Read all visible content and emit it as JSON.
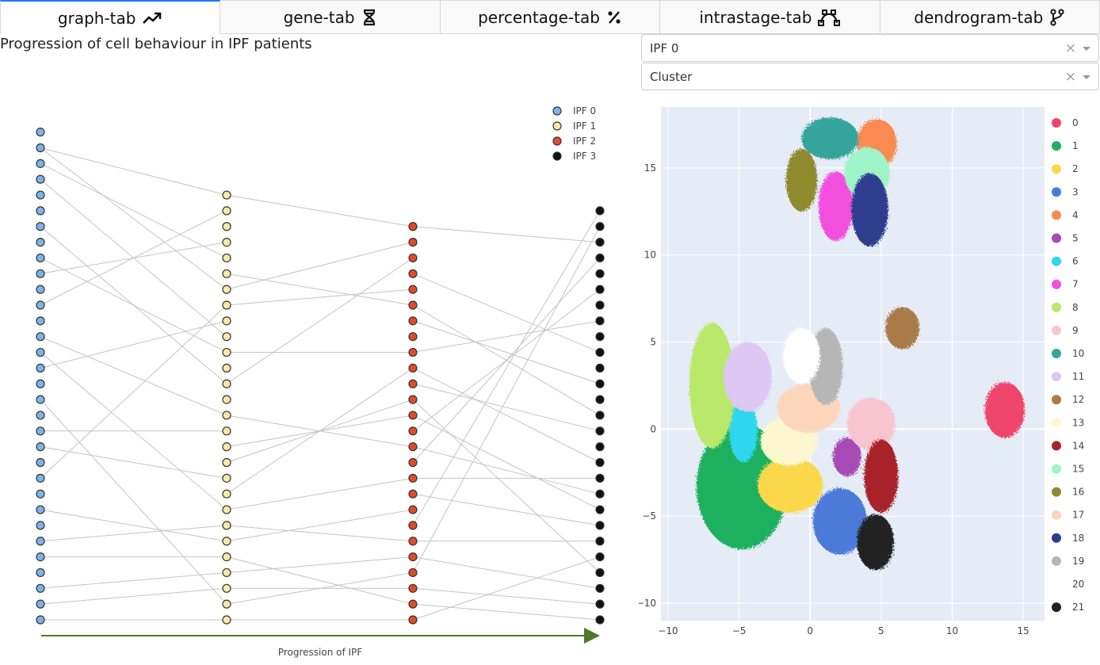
{
  "tabs": [
    {
      "label": "graph-tab",
      "icon": "trend-up-icon",
      "active": true
    },
    {
      "label": "gene-tab",
      "icon": "dna-icon",
      "active": false
    },
    {
      "label": "percentage-tab",
      "icon": "percent-icon",
      "active": false
    },
    {
      "label": "intrastage-tab",
      "icon": "bezier-icon",
      "active": false
    },
    {
      "label": "dendrogram-tab",
      "icon": "branch-icon",
      "active": false
    }
  ],
  "page_title": "Progression of cell behaviour in IPF patients",
  "selects": {
    "patient": {
      "value": "IPF 0",
      "clear": "×"
    },
    "color_by": {
      "value": "Cluster",
      "clear": "×"
    }
  },
  "graph": {
    "xlabel": "Progression of IPF",
    "legend": [
      {
        "name": "IPF 0",
        "color": "#7fb3e6"
      },
      {
        "name": "IPF 1",
        "color": "#f6eba6"
      },
      {
        "name": "IPF 2",
        "color": "#e34a2a"
      },
      {
        "name": "IPF 3",
        "color": "#111111"
      }
    ],
    "columns": [
      {
        "name": "IPF 0",
        "count": 32
      },
      {
        "name": "IPF 1",
        "count": 28
      },
      {
        "name": "IPF 2",
        "count": 26
      },
      {
        "name": "IPF 3",
        "count": 27
      }
    ],
    "edges": [
      [
        0,
        1,
        1,
        0
      ],
      [
        0,
        1,
        1,
        6
      ],
      [
        0,
        3,
        1,
        9
      ],
      [
        0,
        6,
        1,
        12
      ],
      [
        0,
        9,
        1,
        3
      ],
      [
        0,
        11,
        1,
        1
      ],
      [
        0,
        13,
        1,
        14
      ],
      [
        0,
        14,
        1,
        20
      ],
      [
        0,
        15,
        1,
        8
      ],
      [
        0,
        17,
        1,
        26
      ],
      [
        0,
        19,
        1,
        15
      ],
      [
        0,
        20,
        1,
        18
      ],
      [
        0,
        22,
        1,
        7
      ],
      [
        0,
        24,
        1,
        22
      ],
      [
        0,
        26,
        1,
        21
      ],
      [
        0,
        27,
        1,
        23
      ],
      [
        0,
        29,
        1,
        24
      ],
      [
        0,
        30,
        1,
        25
      ],
      [
        0,
        31,
        1,
        27
      ],
      [
        0,
        8,
        1,
        10
      ],
      [
        0,
        2,
        1,
        4
      ],
      [
        1,
        0,
        2,
        0
      ],
      [
        1,
        5,
        2,
        5
      ],
      [
        1,
        7,
        2,
        4
      ],
      [
        1,
        10,
        2,
        8
      ],
      [
        1,
        12,
        2,
        2
      ],
      [
        1,
        14,
        2,
        14
      ],
      [
        1,
        16,
        2,
        12
      ],
      [
        1,
        17,
        2,
        11
      ],
      [
        1,
        20,
        2,
        16
      ],
      [
        1,
        21,
        2,
        20
      ],
      [
        1,
        22,
        2,
        18
      ],
      [
        1,
        23,
        2,
        24
      ],
      [
        1,
        24,
        2,
        21
      ],
      [
        1,
        25,
        2,
        23
      ],
      [
        1,
        26,
        2,
        22
      ],
      [
        1,
        27,
        2,
        25
      ],
      [
        1,
        6,
        2,
        1
      ],
      [
        1,
        19,
        2,
        9
      ],
      [
        2,
        0,
        3,
        2
      ],
      [
        2,
        3,
        3,
        9
      ],
      [
        2,
        5,
        3,
        13
      ],
      [
        2,
        6,
        3,
        11
      ],
      [
        2,
        9,
        3,
        16
      ],
      [
        2,
        10,
        3,
        14
      ],
      [
        2,
        12,
        3,
        19
      ],
      [
        2,
        13,
        3,
        5
      ],
      [
        2,
        14,
        3,
        18
      ],
      [
        2,
        15,
        3,
        3
      ],
      [
        2,
        17,
        3,
        20
      ],
      [
        2,
        19,
        3,
        0
      ],
      [
        2,
        20,
        3,
        21
      ],
      [
        2,
        21,
        3,
        24
      ],
      [
        2,
        22,
        3,
        1
      ],
      [
        2,
        23,
        3,
        25
      ],
      [
        2,
        24,
        3,
        26
      ],
      [
        2,
        25,
        3,
        22
      ],
      [
        2,
        8,
        3,
        7
      ],
      [
        2,
        11,
        3,
        23
      ],
      [
        2,
        16,
        3,
        17
      ]
    ]
  },
  "umap": {
    "x_ticks": [
      "−10",
      "−5",
      "0",
      "5",
      "10",
      "15"
    ],
    "y_ticks": [
      "15",
      "10",
      "5",
      "0",
      "−5",
      "−10"
    ],
    "legend": [
      {
        "label": "0",
        "color": "#f0456b"
      },
      {
        "label": "1",
        "color": "#1fb05e"
      },
      {
        "label": "2",
        "color": "#fbd84a"
      },
      {
        "label": "3",
        "color": "#4c7ad8"
      },
      {
        "label": "4",
        "color": "#fa8a4f"
      },
      {
        "label": "5",
        "color": "#a64bb5"
      },
      {
        "label": "6",
        "color": "#2fd7ee"
      },
      {
        "label": "7",
        "color": "#f24fdf"
      },
      {
        "label": "8",
        "color": "#b9e86a"
      },
      {
        "label": "9",
        "color": "#f8c4d0"
      },
      {
        "label": "10",
        "color": "#34a59b"
      },
      {
        "label": "11",
        "color": "#dcc8f2"
      },
      {
        "label": "12",
        "color": "#ab7a48"
      },
      {
        "label": "13",
        "color": "#fdf7cf"
      },
      {
        "label": "14",
        "color": "#a8242b"
      },
      {
        "label": "15",
        "color": "#9ff4c7"
      },
      {
        "label": "16",
        "color": "#8f8a2e"
      },
      {
        "label": "17",
        "color": "#fdd5bb"
      },
      {
        "label": "18",
        "color": "#2d3d8e"
      },
      {
        "label": "19",
        "color": "#b6b6b6"
      },
      {
        "label": "20",
        "color": "#ffffff"
      },
      {
        "label": "21",
        "color": "#222222"
      }
    ],
    "chart_data": {
      "type": "scatter",
      "xlim": [
        -10.5,
        16.5
      ],
      "ylim": [
        -11,
        18.5
      ],
      "grid": true,
      "legend_position": "right",
      "clusters": [
        {
          "label": "0",
          "x": 13.7,
          "y": 1.1,
          "rx": 1.4,
          "ry": 1.6
        },
        {
          "label": "1",
          "x": -4.8,
          "y": -3.3,
          "rx": 3.2,
          "ry": 3.6
        },
        {
          "label": "2",
          "x": -1.4,
          "y": -3.2,
          "rx": 2.3,
          "ry": 1.6
        },
        {
          "label": "3",
          "x": 2.1,
          "y": -5.3,
          "rx": 1.9,
          "ry": 1.9
        },
        {
          "label": "4",
          "x": 4.7,
          "y": 16.4,
          "rx": 1.4,
          "ry": 1.4
        },
        {
          "label": "5",
          "x": 2.6,
          "y": -1.6,
          "rx": 1.0,
          "ry": 1.1
        },
        {
          "label": "6",
          "x": -4.7,
          "y": -0.1,
          "rx": 1.0,
          "ry": 1.8
        },
        {
          "label": "7",
          "x": 1.8,
          "y": 12.8,
          "rx": 1.2,
          "ry": 2.0
        },
        {
          "label": "8",
          "x": -6.9,
          "y": 2.5,
          "rx": 1.6,
          "ry": 3.6
        },
        {
          "label": "9",
          "x": 4.3,
          "y": 0.3,
          "rx": 1.7,
          "ry": 1.5
        },
        {
          "label": "10",
          "x": 1.4,
          "y": 16.7,
          "rx": 2.0,
          "ry": 1.2
        },
        {
          "label": "11",
          "x": -4.4,
          "y": 3.0,
          "rx": 1.7,
          "ry": 2.0
        },
        {
          "label": "12",
          "x": 6.5,
          "y": 5.8,
          "rx": 1.2,
          "ry": 1.2
        },
        {
          "label": "13",
          "x": -1.5,
          "y": -0.7,
          "rx": 2.0,
          "ry": 1.4
        },
        {
          "label": "14",
          "x": 5.0,
          "y": -2.7,
          "rx": 1.2,
          "ry": 2.1
        },
        {
          "label": "15",
          "x": 4.0,
          "y": 14.7,
          "rx": 1.6,
          "ry": 1.5
        },
        {
          "label": "16",
          "x": -0.6,
          "y": 14.3,
          "rx": 1.1,
          "ry": 1.8
        },
        {
          "label": "17",
          "x": -0.1,
          "y": 1.2,
          "rx": 2.2,
          "ry": 1.4
        },
        {
          "label": "18",
          "x": 4.2,
          "y": 12.6,
          "rx": 1.3,
          "ry": 2.1
        },
        {
          "label": "19",
          "x": 1.1,
          "y": 3.6,
          "rx": 1.2,
          "ry": 2.2
        },
        {
          "label": "20",
          "x": -0.6,
          "y": 4.2,
          "rx": 1.3,
          "ry": 1.6
        },
        {
          "label": "21",
          "x": 4.6,
          "y": -6.5,
          "rx": 1.3,
          "ry": 1.6
        }
      ]
    }
  }
}
